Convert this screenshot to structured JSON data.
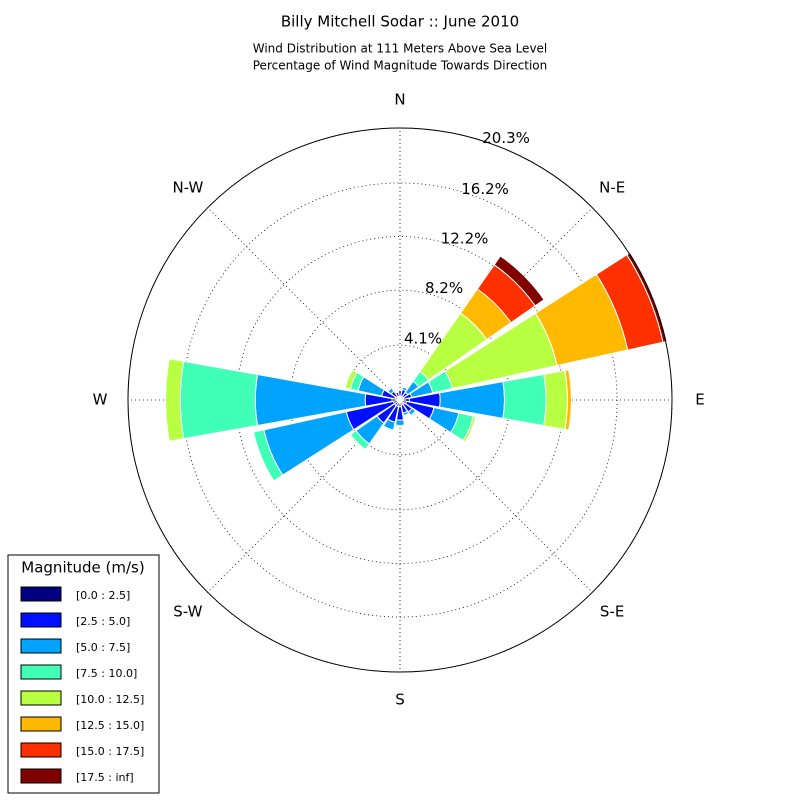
{
  "chart_data": {
    "type": "windrose",
    "title": "Billy Mitchell Sodar :: June 2010",
    "subtitle": [
      "Wind Distribution at 111 Meters Above Sea Level",
      "Percentage of Wind Magnitude Towards Direction"
    ],
    "categories": [
      "N",
      null,
      "N-E",
      null,
      "E",
      null,
      "S-E",
      null,
      "S",
      null,
      "S-W",
      null,
      "W",
      null,
      "N-W",
      null
    ],
    "rlim": [
      0,
      20.3
    ],
    "rticks": [
      {
        "value": 4.1,
        "label": "4.1%"
      },
      {
        "value": 8.2,
        "label": "8.2%"
      },
      {
        "value": 12.2,
        "label": "12.2%"
      },
      {
        "value": 16.2,
        "label": "16.2%"
      },
      {
        "value": 20.3,
        "label": "20.3%"
      }
    ],
    "grid": true,
    "legend_title": "Magnitude (m/s)",
    "legend_position": "lower left",
    "series": [
      {
        "name": "[0.0 : 2.5]",
        "color": "#000080",
        "values": [
          0.3,
          0.3,
          0.2,
          0.3,
          0.7,
          0.5,
          0.4,
          0.4,
          0.5,
          0.5,
          0.5,
          0.5,
          0.6,
          0.4,
          0.3,
          0.3
        ]
      },
      {
        "name": "[2.5 : 5.0]",
        "color": "#0010ff",
        "values": [
          0.4,
          0.5,
          0.5,
          0.6,
          2.3,
          2.1,
          0.7,
          0.6,
          1.0,
          1.2,
          1.6,
          3.6,
          2.0,
          1.0,
          0.5,
          0.3
        ]
      },
      {
        "name": "[5.0 : 7.5]",
        "color": "#00a4ff",
        "values": [
          0.1,
          0.2,
          1.0,
          1.6,
          4.8,
          1.9,
          0.3,
          0.2,
          0.4,
          0.6,
          1.9,
          6.3,
          8.2,
          1.8,
          0.3,
          0.1
        ]
      },
      {
        "name": "[7.5 : 10.0]",
        "color": "#40ffb7",
        "values": [
          0,
          0,
          0.9,
          1.5,
          3.1,
          1.1,
          0.1,
          0,
          0.1,
          0.1,
          0.5,
          0.8,
          5.6,
          0.6,
          0.1,
          0
        ]
      },
      {
        "name": "[10.0 : 12.5]",
        "color": "#b7ff40",
        "values": [
          0,
          0,
          5.3,
          8.0,
          1.6,
          0.2,
          0,
          0,
          0,
          0,
          0.1,
          0,
          1.1,
          0.4,
          0,
          0
        ]
      },
      {
        "name": "[12.5 : 15.0]",
        "color": "#ffb900",
        "values": [
          0,
          0,
          2.2,
          5.4,
          0.3,
          0,
          0,
          0,
          0,
          0,
          0,
          0,
          0,
          0,
          0,
          0
        ]
      },
      {
        "name": "[15.0 : 17.5]",
        "color": "#ff3000",
        "values": [
          0,
          0,
          2.2,
          2.7,
          0,
          0,
          0,
          0,
          0,
          0,
          0,
          0,
          0,
          0,
          0,
          0
        ]
      },
      {
        "name": "[17.5 : inf]",
        "color": "#800000",
        "values": [
          0,
          0,
          0.8,
          0.3,
          0,
          0,
          0,
          0,
          0,
          0,
          0,
          0,
          0,
          0,
          0,
          0
        ]
      }
    ]
  }
}
